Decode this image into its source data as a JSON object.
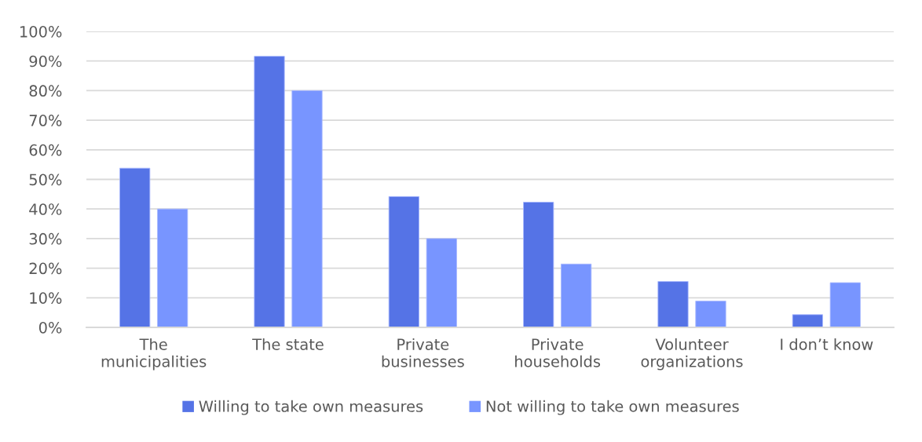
{
  "chart_data": {
    "type": "bar",
    "categories": [
      "The\nmunicipalities",
      "The state",
      "Private\nbusinesses",
      "Private\nhouseholds",
      "Volunteer\norganizations",
      "I don’t know"
    ],
    "series": [
      {
        "name": "Willing to take own measures",
        "color": "#5573e6",
        "values": [
          53.8,
          91.6,
          44.2,
          42.3,
          15.5,
          4.3
        ]
      },
      {
        "name": "Not willing to take own measures",
        "color": "#7895ff",
        "values": [
          40.0,
          80.0,
          30.0,
          21.4,
          8.9,
          15.1
        ]
      }
    ],
    "ylim": [
      0,
      100
    ],
    "yticks": [
      {
        "value": 0,
        "label": "0%"
      },
      {
        "value": 10,
        "label": "10%"
      },
      {
        "value": 20,
        "label": "20%"
      },
      {
        "value": 30,
        "label": "30%"
      },
      {
        "value": 40,
        "label": "40%"
      },
      {
        "value": 50,
        "label": "50%"
      },
      {
        "value": 60,
        "label": "60%"
      },
      {
        "value": 70,
        "label": "70%"
      },
      {
        "value": 80,
        "label": "80%"
      },
      {
        "value": 90,
        "label": "90%"
      },
      {
        "value": 100,
        "label": "100%"
      }
    ],
    "grid": "y",
    "legend": "bottom"
  }
}
